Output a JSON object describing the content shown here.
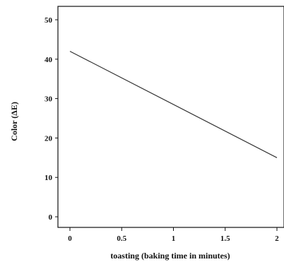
{
  "chart_data": {
    "type": "line",
    "title": "",
    "xlabel": "toasting (baking time in minutes)",
    "ylabel": "Color (ΔE)",
    "xlim": [
      0,
      2
    ],
    "ylim": [
      0,
      50
    ],
    "x_ticks": [
      "0",
      "0.5",
      "1",
      "1.5",
      "2"
    ],
    "y_ticks": [
      "0",
      "10",
      "20",
      "30",
      "40",
      "50"
    ],
    "grid": false,
    "series": [
      {
        "x": [
          0,
          2
        ],
        "y": [
          42,
          15
        ],
        "color": "#333333"
      }
    ]
  }
}
